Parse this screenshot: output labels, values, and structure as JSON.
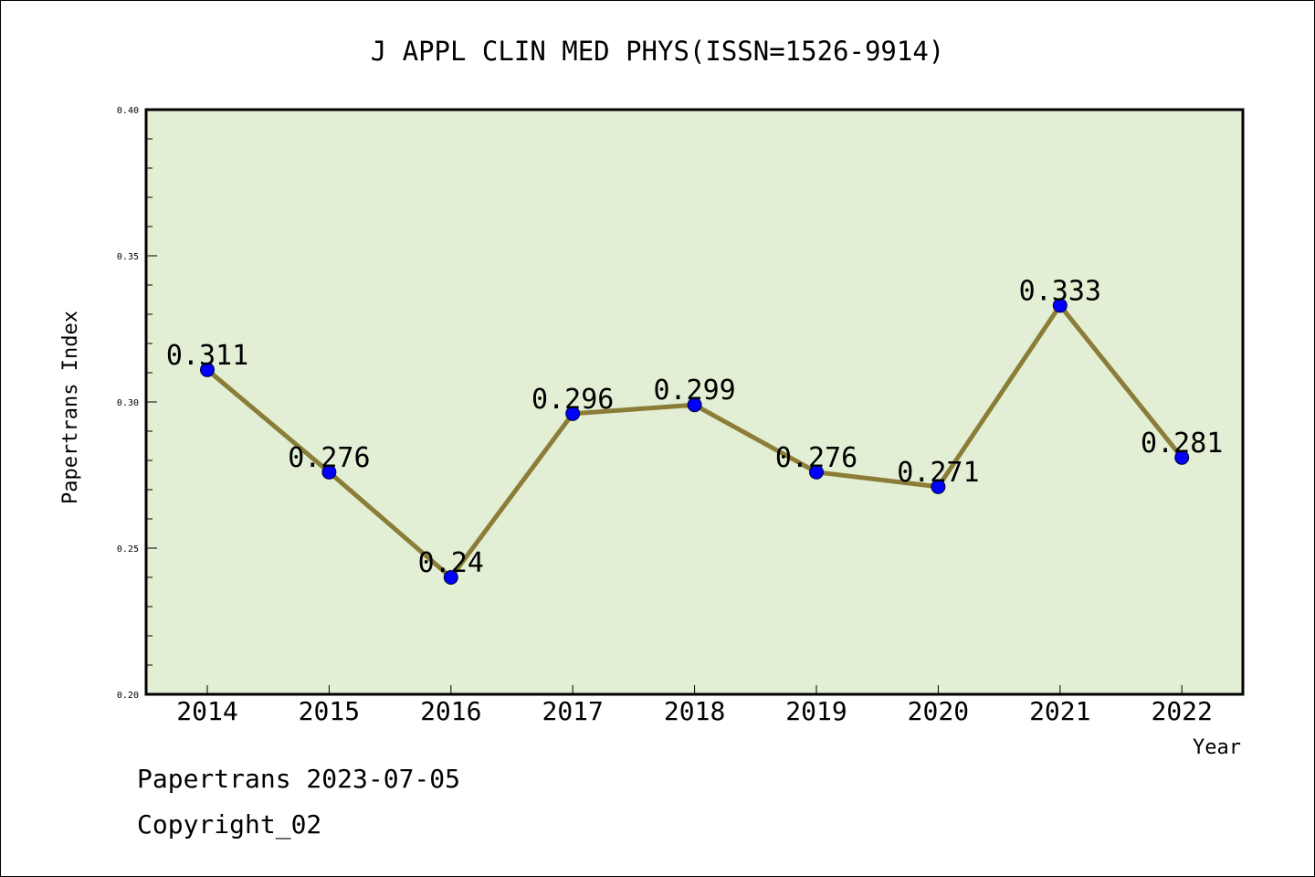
{
  "chart_data": {
    "type": "line",
    "title": "J APPL CLIN MED PHYS(ISSN=1526-9914)",
    "xlabel": "Year",
    "ylabel": "Papertrans Index",
    "categories": [
      "2014",
      "2015",
      "2016",
      "2017",
      "2018",
      "2019",
      "2020",
      "2021",
      "2022"
    ],
    "values": [
      0.311,
      0.276,
      0.24,
      0.296,
      0.299,
      0.276,
      0.271,
      0.333,
      0.281
    ],
    "data_labels": [
      "0.311",
      "0.276",
      "0.24",
      "0.296",
      "0.299",
      "0.276",
      "0.271",
      "0.333",
      "0.281"
    ],
    "ylim": [
      0.2,
      0.4
    ],
    "yticks": [
      0.2,
      0.25,
      0.3,
      0.35,
      0.4
    ],
    "ytick_labels": [
      "0.20",
      "0.25",
      "0.30",
      "0.35",
      "0.40"
    ],
    "grid": false,
    "legend": "none",
    "colors": {
      "plot_background": "#e2efd4",
      "line": "#8b7d38",
      "marker": "#0000ff",
      "axis": "#000000"
    }
  },
  "footer": {
    "source": "Papertrans 2023-07-05",
    "copyright": "Copyright_02"
  }
}
